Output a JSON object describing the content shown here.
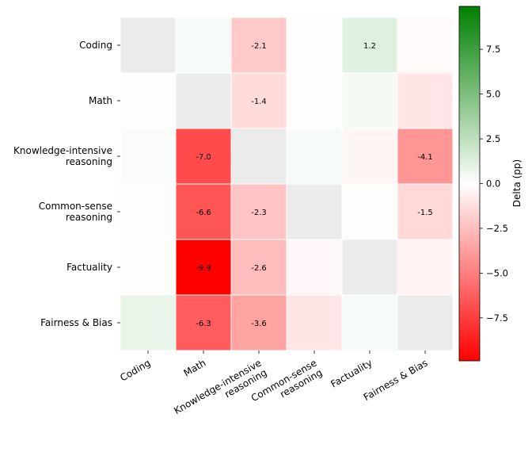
{
  "chart_data": {
    "type": "heatmap",
    "title": "",
    "row_labels": [
      "Coding",
      "Math",
      "Knowledge-intensive reasoning",
      "Common-sense reasoning",
      "Factuality",
      "Fairness & Bias"
    ],
    "col_labels": [
      "Coding",
      "Math",
      "Knowledge-intensive reasoning",
      "Common-sense reasoning",
      "Factuality",
      "Fairness & Bias"
    ],
    "values": [
      [
        0.0,
        0.3,
        -2.1,
        -0.1,
        1.2,
        -0.2
      ],
      [
        -0.1,
        0.0,
        -1.4,
        -0.1,
        0.4,
        -1.0
      ],
      [
        0.2,
        -7.0,
        0.0,
        0.3,
        -0.4,
        -4.1
      ],
      [
        0.1,
        -6.6,
        -2.3,
        0.0,
        -0.1,
        -1.5
      ],
      [
        -0.1,
        -9.9,
        -2.6,
        -0.3,
        0.0,
        -0.5
      ],
      [
        0.8,
        -6.3,
        -3.6,
        -1.0,
        0.3,
        0.0
      ]
    ],
    "cell_text": [
      [
        "",
        "",
        "-2.1",
        "",
        "1.2",
        ""
      ],
      [
        "",
        "",
        "-1.4",
        "",
        "",
        ""
      ],
      [
        "",
        "-7.0",
        "",
        "",
        "",
        "-4.1"
      ],
      [
        "",
        "-6.6",
        "-2.3",
        "",
        "",
        "-1.5"
      ],
      [
        "",
        "-9.9",
        "-2.6",
        "",
        "",
        ""
      ],
      [
        "",
        "-6.3",
        "-3.6",
        "",
        "",
        ""
      ]
    ],
    "colorbar": {
      "label": "Delta (pp)",
      "vmin": -9.9,
      "vmax": 9.9,
      "ticks": [
        7.5,
        5.0,
        2.5,
        0.0,
        -2.5,
        -5.0,
        -7.5
      ],
      "tick_labels": [
        "7.5",
        "5.0",
        "2.5",
        "0.0",
        "−2.5",
        "−5.0",
        "−7.5"
      ],
      "colors": {
        "negative": "#ff0000",
        "center": "#ffffff",
        "positive": "#008000"
      }
    }
  }
}
